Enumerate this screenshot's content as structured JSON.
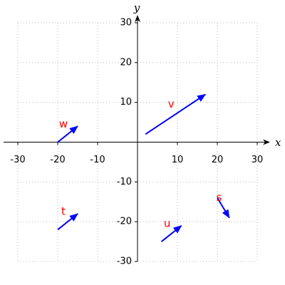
{
  "chart_data": {
    "type": "quiver",
    "x_label": "x",
    "y_label": "y",
    "xlim": [
      -30,
      30
    ],
    "ylim": [
      -30,
      30
    ],
    "xticks": [
      -30,
      -20,
      -10,
      10,
      20,
      30
    ],
    "yticks": [
      -30,
      -20,
      -10,
      10,
      20,
      30
    ],
    "grid": true,
    "color": "#0000ff",
    "label_color": "#ff0000",
    "vectors": [
      {
        "name": "v",
        "x": 2,
        "y": 2,
        "dx": 15,
        "dy": 10
      },
      {
        "name": "w",
        "x": -20,
        "y": 0,
        "dx": 5,
        "dy": 4
      },
      {
        "name": "t",
        "x": -20,
        "y": -22,
        "dx": 5,
        "dy": 4
      },
      {
        "name": "u",
        "x": 6,
        "y": -25,
        "dx": 5,
        "dy": 4
      },
      {
        "name": "s",
        "x": 20,
        "y": -14,
        "dx": 3,
        "dy": -5
      }
    ]
  }
}
